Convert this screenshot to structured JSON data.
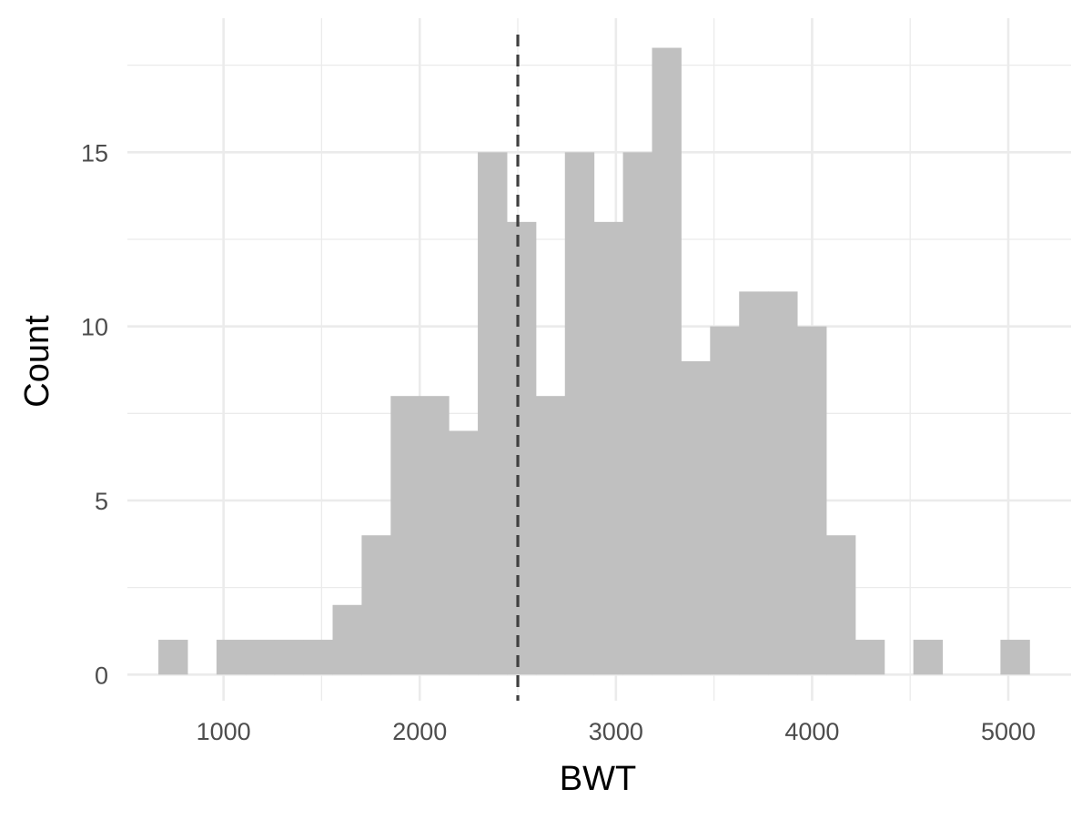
{
  "chart_data": {
    "type": "bar",
    "subtype": "histogram",
    "xlabel": "BWT",
    "ylabel": "Count",
    "bin_width": 148,
    "bins": [
      {
        "x0": 668,
        "count": 1
      },
      {
        "x0": 816,
        "count": 0
      },
      {
        "x0": 964,
        "count": 1
      },
      {
        "x0": 1112,
        "count": 1
      },
      {
        "x0": 1260,
        "count": 1
      },
      {
        "x0": 1408,
        "count": 1
      },
      {
        "x0": 1556,
        "count": 2
      },
      {
        "x0": 1704,
        "count": 4
      },
      {
        "x0": 1852,
        "count": 8
      },
      {
        "x0": 2000,
        "count": 8
      },
      {
        "x0": 2148,
        "count": 7
      },
      {
        "x0": 2296,
        "count": 15
      },
      {
        "x0": 2444,
        "count": 13
      },
      {
        "x0": 2592,
        "count": 8
      },
      {
        "x0": 2740,
        "count": 15
      },
      {
        "x0": 2888,
        "count": 13
      },
      {
        "x0": 3036,
        "count": 15
      },
      {
        "x0": 3184,
        "count": 18
      },
      {
        "x0": 3332,
        "count": 9
      },
      {
        "x0": 3480,
        "count": 10
      },
      {
        "x0": 3628,
        "count": 11
      },
      {
        "x0": 3776,
        "count": 11
      },
      {
        "x0": 3924,
        "count": 10
      },
      {
        "x0": 4072,
        "count": 4
      },
      {
        "x0": 4220,
        "count": 1
      },
      {
        "x0": 4368,
        "count": 0
      },
      {
        "x0": 4516,
        "count": 1
      },
      {
        "x0": 4664,
        "count": 0
      },
      {
        "x0": 4812,
        "count": 0
      },
      {
        "x0": 4960,
        "count": 1
      }
    ],
    "reference_line": {
      "x": 2500,
      "style": "dashed",
      "color": "#404040"
    },
    "xlim": [
      510,
      5320
    ],
    "ylim": [
      -0.75,
      18.85
    ],
    "x_ticks": [
      1000,
      2000,
      3000,
      4000,
      5000
    ],
    "y_ticks": [
      0,
      5,
      10,
      15
    ],
    "bar_color": "#c0c0c0",
    "grid": true,
    "grid_color": "#ebebeb",
    "background": "#ffffff"
  }
}
